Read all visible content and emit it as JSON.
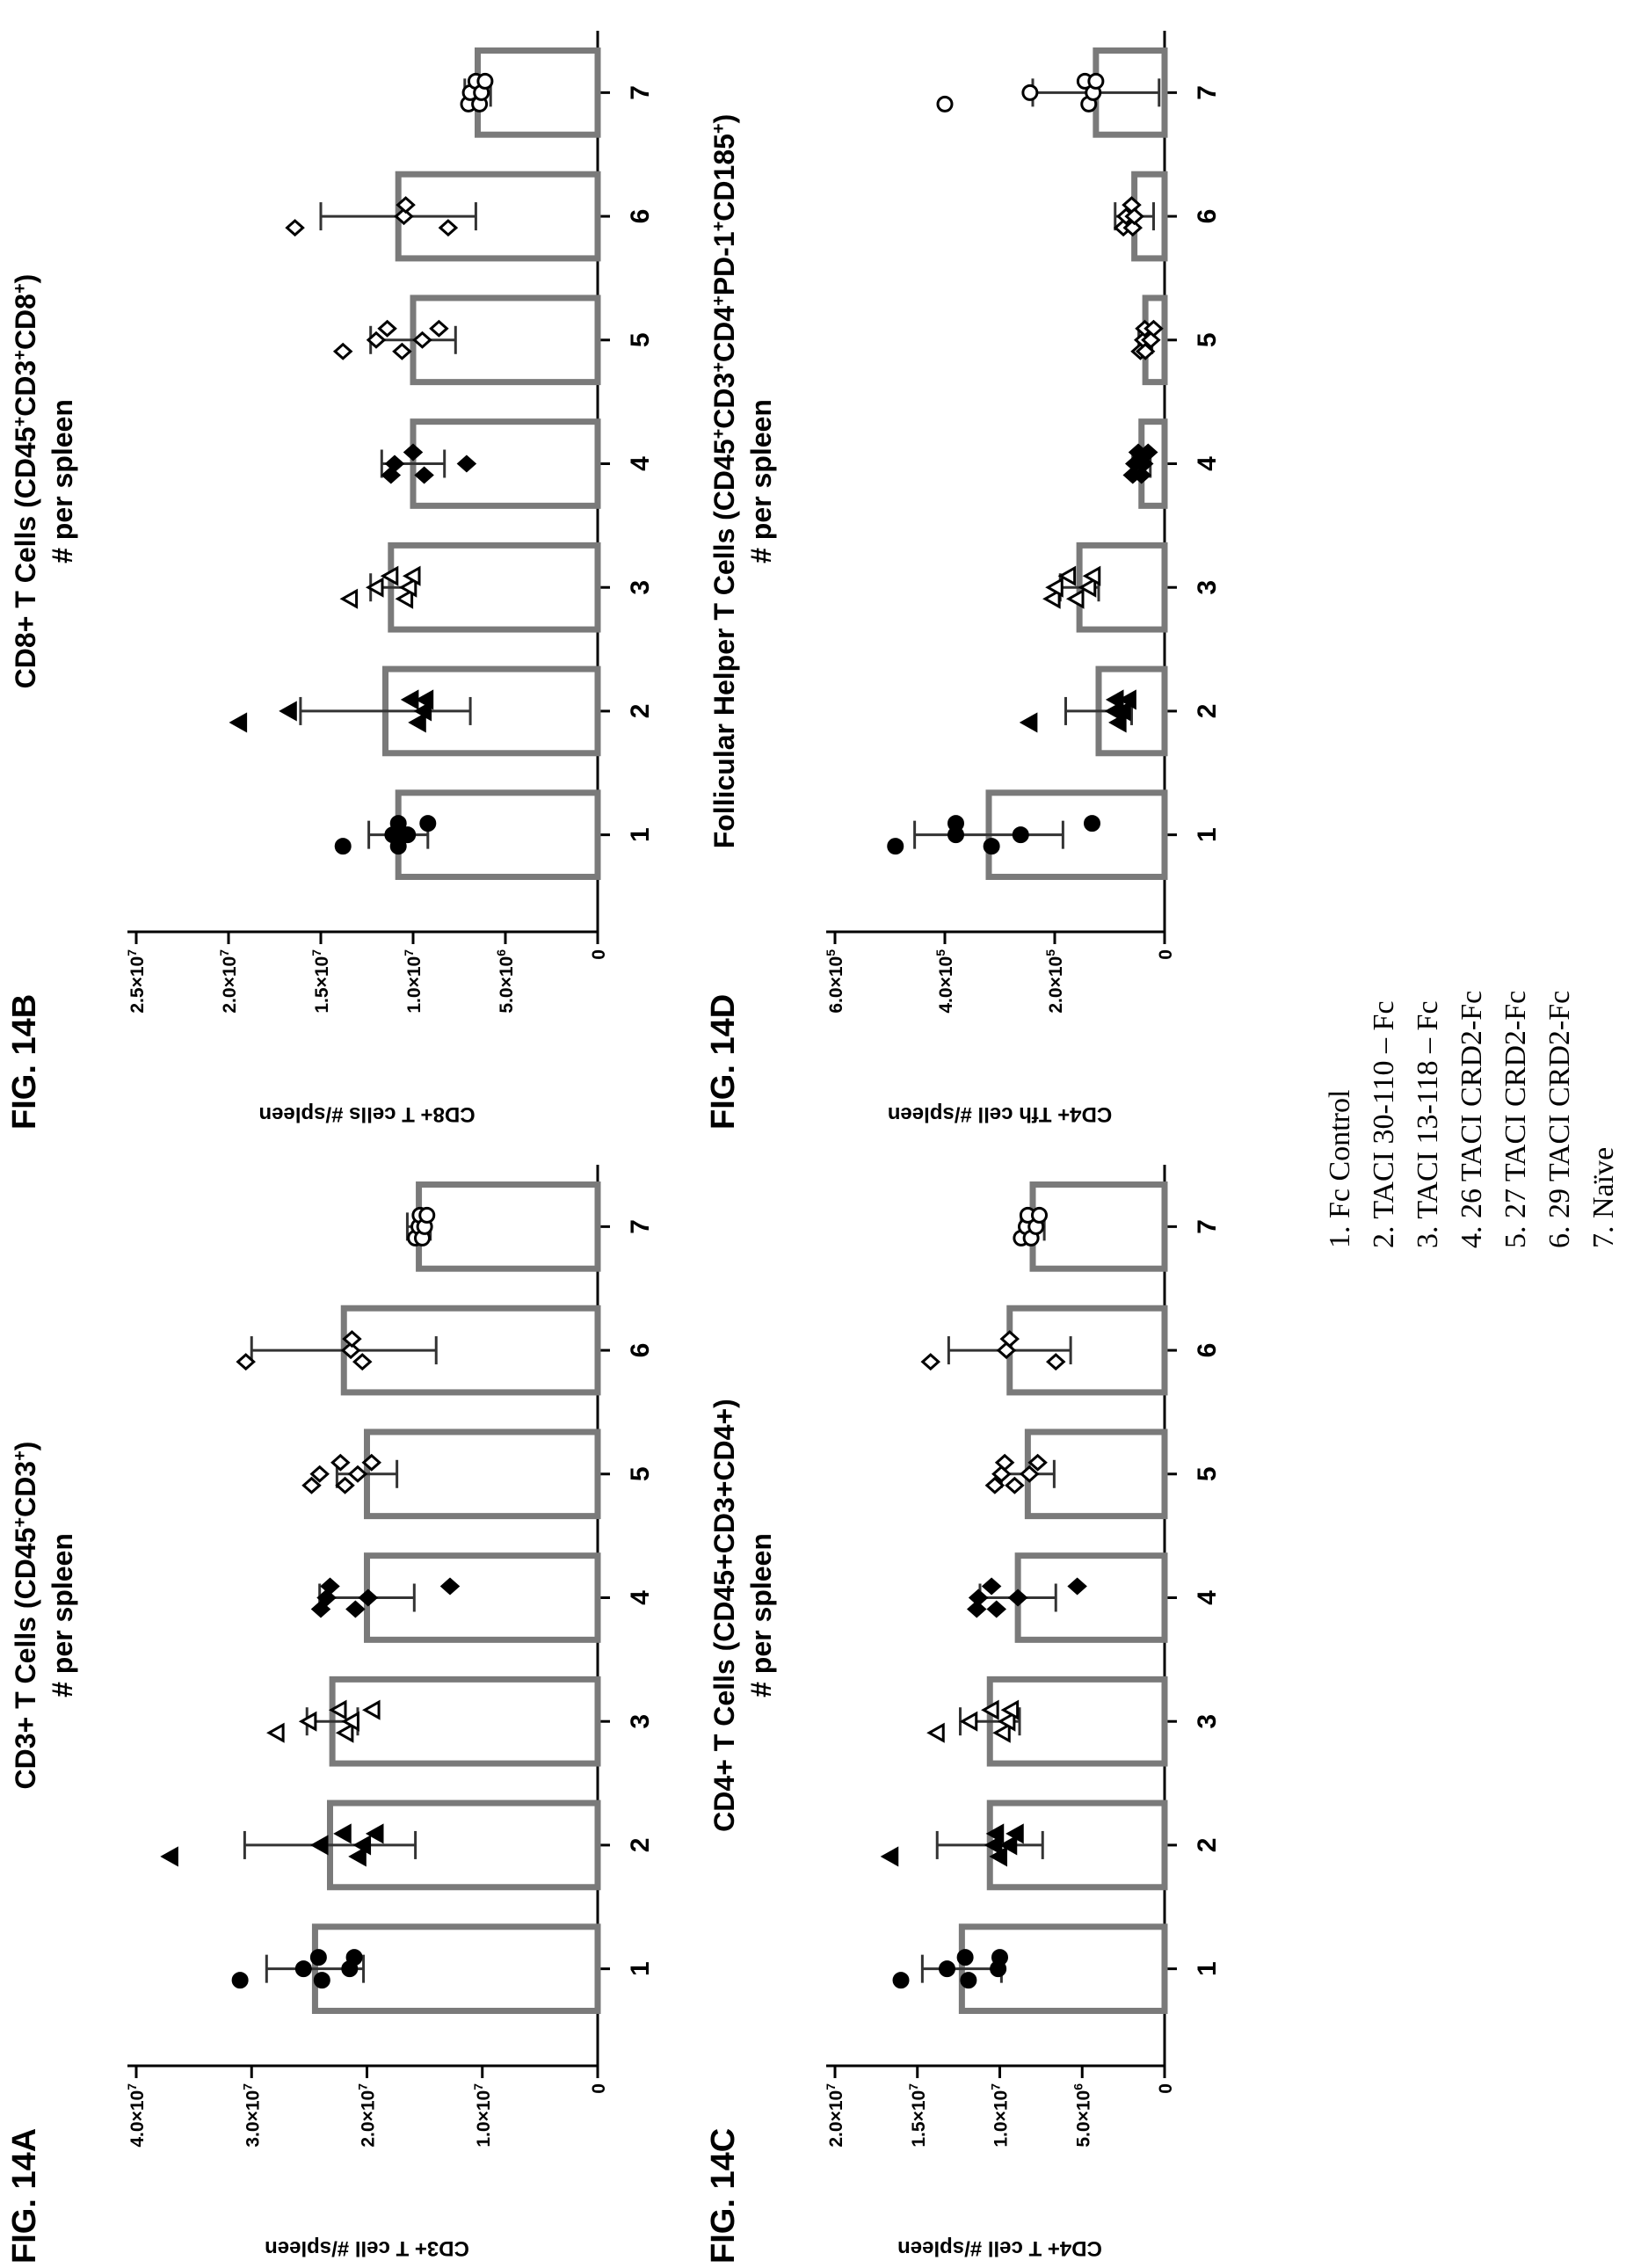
{
  "figures": [
    {
      "label": "FIG. 14A",
      "title_line1_parts": [
        "CD3+ T Cells (CD45",
        "+",
        "CD3",
        "+",
        ")"
      ],
      "title_line2": "# per spleen",
      "ylabel": "CD3+ T cell #/spleen"
    },
    {
      "label": "FIG. 14B",
      "title_line1_parts": [
        "CD8+ T Cells (CD45",
        "+",
        "CD3",
        "+",
        "CD8",
        "+",
        ")"
      ],
      "title_line2": "# per spleen",
      "ylabel": "CD8+ T cells #/spleen"
    },
    {
      "label": "FIG. 14C",
      "title_line1_parts": [
        "CD4+ T Cells (CD45+CD3+CD4+)"
      ],
      "title_line2": "# per spleen",
      "ylabel": "CD4+ T cell #/spleen"
    },
    {
      "label": "FIG. 14D",
      "title_line1_parts": [
        "Follicular Helper T Cells (CD45",
        "+",
        "CD3",
        "+",
        "CD4",
        "+",
        "PD-1",
        "+",
        "CD185",
        "+",
        ")"
      ],
      "title_line2": "# per spleen",
      "ylabel": "CD4+ Tfh cell #/spleen"
    }
  ],
  "legend": [
    "1.  Fc Control",
    "2.  TACI 30-110 – Fc",
    "3.  TACI 13-118 – Fc",
    "4.  26 TACI CRD2-Fc",
    "5.  27 TACI CRD2-Fc",
    "6.  29 TACI CRD2-Fc",
    "7.  Naïve"
  ],
  "chart_data": [
    {
      "type": "bar",
      "figure": "FIG. 14A",
      "ylabel": "CD3+ T cell #/spleen",
      "xlabel": "",
      "categories": [
        "1",
        "2",
        "3",
        "4",
        "5",
        "6",
        "7"
      ],
      "yticks": [
        0,
        10000000,
        20000000,
        30000000,
        40000000
      ],
      "ytick_labels": [
        "0",
        "1.0×10⁷",
        "2.0×10⁷",
        "3.0×10⁷",
        "4.0×10⁷"
      ],
      "ylim": [
        0,
        40000000
      ],
      "series": [
        {
          "values": [
            24500000,
            23200000,
            23000000,
            20000000,
            20000000,
            22000000,
            15500000
          ],
          "errors": [
            4200000,
            7400000,
            2200000,
            4100000,
            2600000,
            8000000,
            1000000
          ],
          "points": [
            [
              31000000,
              25500000,
              24200000,
              23900000,
              21500000,
              21100000
            ],
            [
              37000000,
              24000000,
              22000000,
              20700000,
              20300000,
              19200000
            ],
            [
              27800000,
              25000000,
              22400000,
              21800000,
              21300000,
              19500000
            ],
            [
              24000000,
              23500000,
              23200000,
              21000000,
              19900000,
              12800000
            ],
            [
              24800000,
              24100000,
              22300000,
              21900000,
              20800000,
              19600000
            ],
            [
              30500000,
              21400000,
              21300000,
              20400000
            ],
            [
              15800000,
              15500000,
              15400000,
              15200000,
              15000000,
              14800000
            ]
          ],
          "markers": [
            "circle",
            "triangle",
            "triangle-open",
            "diamond",
            "diamond-open",
            "diamond-open",
            "circle-open"
          ]
        }
      ]
    },
    {
      "type": "bar",
      "figure": "FIG. 14B",
      "ylabel": "CD8+ T cells #/spleen",
      "xlabel": "",
      "categories": [
        "1",
        "2",
        "3",
        "4",
        "5",
        "6",
        "7"
      ],
      "yticks": [
        0,
        5000000,
        10000000,
        15000000,
        20000000,
        25000000
      ],
      "ytick_labels": [
        "0",
        "5.0×10⁶",
        "1.0×10⁷",
        "1.5×10⁷",
        "2.0×10⁷",
        "2.5×10⁷"
      ],
      "ylim": [
        0,
        25000000
      ],
      "series": [
        {
          "values": [
            10800000,
            11500000,
            11200000,
            10000000,
            10000000,
            10800000,
            6500000
          ],
          "errors": [
            1600000,
            4600000,
            1100000,
            1700000,
            2300000,
            4200000,
            700000
          ],
          "points": [
            [
              13800000,
              11100000,
              10800000,
              10800000,
              10300000,
              9200000
            ],
            [
              19400000,
              16700000,
              10100000,
              9700000,
              9400000,
              9300000
            ],
            [
              13400000,
              12000000,
              11200000,
              10400000,
              10200000,
              10000000
            ],
            [
              11200000,
              11000000,
              10000000,
              9400000,
              7100000
            ],
            [
              13800000,
              12000000,
              11400000,
              10600000,
              9500000,
              8600000
            ],
            [
              16400000,
              10500000,
              10400000,
              8100000
            ],
            [
              7000000,
              6900000,
              6600000,
              6400000,
              6300000,
              6100000
            ]
          ],
          "markers": [
            "circle",
            "triangle",
            "triangle-open",
            "diamond",
            "diamond-open",
            "diamond-open",
            "circle-open"
          ]
        }
      ]
    },
    {
      "type": "bar",
      "figure": "FIG. 14C",
      "ylabel": "CD4+ T cell #/spleen",
      "xlabel": "",
      "categories": [
        "1",
        "2",
        "3",
        "4",
        "5",
        "6",
        "7"
      ],
      "yticks": [
        0,
        5000000,
        10000000,
        15000000,
        20000000
      ],
      "ytick_labels": [
        "0",
        "5.0×10⁶",
        "1.0×10⁷",
        "1.5×10⁷",
        "2.0×10⁷"
      ],
      "ylim": [
        0,
        20000000
      ],
      "series": [
        {
          "values": [
            12300000,
            10600000,
            10600000,
            8900000,
            8300000,
            9400000,
            8000000
          ],
          "errors": [
            2400000,
            3200000,
            1800000,
            2300000,
            1600000,
            3700000,
            700000
          ],
          "points": [
            [
              16000000,
              13200000,
              12100000,
              11900000,
              10100000,
              10000000
            ],
            [
              16600000,
              10300000,
              10200000,
              10000000,
              9400000,
              9000000
            ],
            [
              13800000,
              11800000,
              10500000,
              9800000,
              9500000,
              9300000
            ],
            [
              11400000,
              11300000,
              10500000,
              10200000,
              8900000,
              5300000
            ],
            [
              10300000,
              9900000,
              9700000,
              9100000,
              8200000,
              7700000
            ],
            [
              14200000,
              9600000,
              9400000,
              6600000
            ],
            [
              8700000,
              8400000,
              8300000,
              8100000,
              7800000,
              7600000
            ]
          ],
          "markers": [
            "circle",
            "triangle",
            "triangle-open",
            "diamond",
            "diamond-open",
            "diamond-open",
            "circle-open"
          ]
        }
      ]
    },
    {
      "type": "bar",
      "figure": "FIG. 14D",
      "ylabel": "CD4+ Tfh cell #/spleen",
      "xlabel": "",
      "categories": [
        "1",
        "2",
        "3",
        "4",
        "5",
        "6",
        "7"
      ],
      "yticks": [
        0,
        200000,
        400000,
        600000
      ],
      "ytick_labels": [
        "0",
        "2.0×10⁵",
        "4.0×10⁵",
        "6.0×10⁵"
      ],
      "ylim": [
        0,
        600000
      ],
      "series": [
        {
          "values": [
            320000,
            120000,
            155000,
            42000,
            35000,
            55000,
            125000
          ],
          "errors": [
            135000,
            60000,
            35000,
            16000,
            12000,
            35000,
            115000
          ],
          "points": [
            [
              490000,
              380000,
              380000,
              315000,
              262000,
              132000
            ],
            [
              245000,
              90000,
              88000,
              83000,
              75000,
              65000
            ],
            [
              203000,
              198000,
              175000,
              160000,
              138000,
              130000
            ],
            [
              58000,
              54000,
              48000,
              42000,
              38000,
              30000
            ],
            [
              44000,
              38000,
              36000,
              35000,
              25000,
              20000
            ],
            [
              75000,
              70000,
              60000,
              58000,
              55000
            ],
            [
              400000,
              245000,
              145000,
              138000,
              130000,
              125000
            ]
          ],
          "markers": [
            "circle",
            "triangle",
            "triangle-open",
            "diamond",
            "diamond-open",
            "diamond-open",
            "circle-open"
          ]
        }
      ]
    }
  ]
}
